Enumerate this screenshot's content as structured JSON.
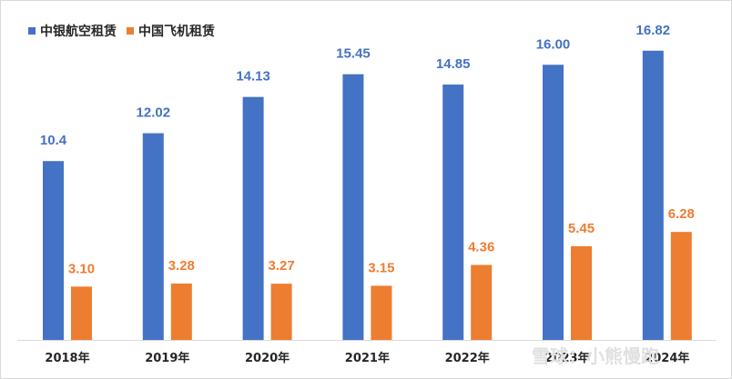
{
  "chart_data": {
    "type": "bar",
    "categories": [
      "2018年",
      "2019年",
      "2020年",
      "2021年",
      "2022年",
      "2023年",
      "2024年"
    ],
    "series": [
      {
        "name": "中银航空租赁",
        "color": "#4472C4",
        "values": [
          10.4,
          12.02,
          14.13,
          15.45,
          14.85,
          16.0,
          16.82
        ],
        "labels": [
          "10.4",
          "12.02",
          "14.13",
          "15.45",
          "14.85",
          "16.00",
          "16.82"
        ]
      },
      {
        "name": "中国飞机租赁",
        "color": "#ED7D31",
        "values": [
          3.1,
          3.28,
          3.27,
          3.15,
          4.36,
          5.45,
          6.28
        ],
        "labels": [
          "3.10",
          "3.28",
          "3.27",
          "3.15",
          "4.36",
          "5.45",
          "6.28"
        ]
      }
    ],
    "ylim": [
      0,
      17.6
    ],
    "title": "",
    "xlabel": "",
    "ylabel": "",
    "legend": "top-left",
    "grid": false
  },
  "watermark": "雪球：小熊慢跑"
}
